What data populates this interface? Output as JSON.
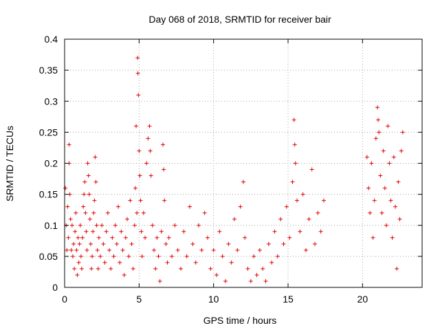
{
  "chart_data": {
    "type": "scatter",
    "title": "Day 068 of 2018, SRMTID for receiver bair",
    "xlabel": "GPS time / hours",
    "ylabel": "SRMTID / TECUs",
    "xlim": [
      0,
      24
    ],
    "ylim": [
      0,
      0.4
    ],
    "xticks": [
      0,
      5,
      10,
      15,
      20
    ],
    "yticks": [
      0,
      0.05,
      0.1,
      0.15,
      0.2,
      0.25,
      0.3,
      0.35,
      0.4
    ],
    "ytick_labels": [
      "0",
      "0.05",
      "0.1",
      "0.15",
      "0.2",
      "0.25",
      "0.3",
      "0.35",
      "0.4"
    ],
    "xtick_labels": [
      "0",
      "5",
      "10",
      "15",
      "20"
    ],
    "grid": true,
    "marker": "+",
    "color": "#e00000",
    "series": [
      {
        "name": "SRMTID",
        "points": [
          [
            0.05,
            0.16
          ],
          [
            0.1,
            0.1
          ],
          [
            0.15,
            0.06
          ],
          [
            0.2,
            0.13
          ],
          [
            0.25,
            0.08
          ],
          [
            0.3,
            0.23
          ],
          [
            0.3,
            0.2
          ],
          [
            0.35,
            0.15
          ],
          [
            0.4,
            0.11
          ],
          [
            0.45,
            0.06
          ],
          [
            0.5,
            0.1
          ],
          [
            0.55,
            0.05
          ],
          [
            0.6,
            0.07
          ],
          [
            0.65,
            0.03
          ],
          [
            0.7,
            0.09
          ],
          [
            0.75,
            0.12
          ],
          [
            0.8,
            0.06
          ],
          [
            0.85,
            0.02
          ],
          [
            0.9,
            0.08
          ],
          [
            0.95,
            0.04
          ],
          [
            1.0,
            0.07
          ],
          [
            1.05,
            0.1
          ],
          [
            1.1,
            0.05
          ],
          [
            1.15,
            0.03
          ],
          [
            1.2,
            0.08
          ],
          [
            1.25,
            0.13
          ],
          [
            1.3,
            0.15
          ],
          [
            1.35,
            0.17
          ],
          [
            1.4,
            0.12
          ],
          [
            1.45,
            0.09
          ],
          [
            1.5,
            0.06
          ],
          [
            1.55,
            0.2
          ],
          [
            1.6,
            0.18
          ],
          [
            1.65,
            0.15
          ],
          [
            1.7,
            0.11
          ],
          [
            1.75,
            0.07
          ],
          [
            1.8,
            0.03
          ],
          [
            1.85,
            0.05
          ],
          [
            1.9,
            0.09
          ],
          [
            1.95,
            0.12
          ],
          [
            2.0,
            0.14
          ],
          [
            2.05,
            0.21
          ],
          [
            2.1,
            0.17
          ],
          [
            2.15,
            0.1
          ],
          [
            2.2,
            0.06
          ],
          [
            2.25,
            0.03
          ],
          [
            2.3,
            0.08
          ],
          [
            2.4,
            0.05
          ],
          [
            2.5,
            0.1
          ],
          [
            2.6,
            0.07
          ],
          [
            2.7,
            0.04
          ],
          [
            2.8,
            0.09
          ],
          [
            2.9,
            0.12
          ],
          [
            3.0,
            0.06
          ],
          [
            3.1,
            0.03
          ],
          [
            3.2,
            0.08
          ],
          [
            3.3,
            0.05
          ],
          [
            3.4,
            0.1
          ],
          [
            3.5,
            0.07
          ],
          [
            3.6,
            0.13
          ],
          [
            3.7,
            0.04
          ],
          [
            3.8,
            0.09
          ],
          [
            3.9,
            0.06
          ],
          [
            4.0,
            0.02
          ],
          [
            4.1,
            0.08
          ],
          [
            4.2,
            0.11
          ],
          [
            4.3,
            0.05
          ],
          [
            4.4,
            0.14
          ],
          [
            4.5,
            0.07
          ],
          [
            4.6,
            0.03
          ],
          [
            4.7,
            0.1
          ],
          [
            4.75,
            0.16
          ],
          [
            4.8,
            0.26
          ],
          [
            4.85,
            0.12
          ],
          [
            4.9,
            0.37
          ],
          [
            4.92,
            0.345
          ],
          [
            4.95,
            0.31
          ],
          [
            5.0,
            0.22
          ],
          [
            5.05,
            0.18
          ],
          [
            5.1,
            0.14
          ],
          [
            5.15,
            0.09
          ],
          [
            5.2,
            0.05
          ],
          [
            5.3,
            0.12
          ],
          [
            5.4,
            0.08
          ],
          [
            5.5,
            0.2
          ],
          [
            5.6,
            0.24
          ],
          [
            5.7,
            0.26
          ],
          [
            5.75,
            0.22
          ],
          [
            5.8,
            0.18
          ],
          [
            5.9,
            0.1
          ],
          [
            6.0,
            0.06
          ],
          [
            6.1,
            0.03
          ],
          [
            6.2,
            0.08
          ],
          [
            6.3,
            0.05
          ],
          [
            6.4,
            0.01
          ],
          [
            6.5,
            0.09
          ],
          [
            6.6,
            0.23
          ],
          [
            6.65,
            0.19
          ],
          [
            6.7,
            0.14
          ],
          [
            6.8,
            0.07
          ],
          [
            6.9,
            0.04
          ],
          [
            7.0,
            0.08
          ],
          [
            7.2,
            0.05
          ],
          [
            7.4,
            0.1
          ],
          [
            7.6,
            0.06
          ],
          [
            7.8,
            0.03
          ],
          [
            8.0,
            0.09
          ],
          [
            8.2,
            0.05
          ],
          [
            8.4,
            0.13
          ],
          [
            8.6,
            0.07
          ],
          [
            8.8,
            0.04
          ],
          [
            9.0,
            0.1
          ],
          [
            9.2,
            0.06
          ],
          [
            9.4,
            0.12
          ],
          [
            9.6,
            0.08
          ],
          [
            9.8,
            0.03
          ],
          [
            10.0,
            0.06
          ],
          [
            10.2,
            0.02
          ],
          [
            10.4,
            0.09
          ],
          [
            10.6,
            0.05
          ],
          [
            10.8,
            0.01
          ],
          [
            11.0,
            0.07
          ],
          [
            11.2,
            0.04
          ],
          [
            11.4,
            0.11
          ],
          [
            11.6,
            0.06
          ],
          [
            11.8,
            0.13
          ],
          [
            12.0,
            0.17
          ],
          [
            12.1,
            0.08
          ],
          [
            12.3,
            0.03
          ],
          [
            12.5,
            0.01
          ],
          [
            12.7,
            0.05
          ],
          [
            12.9,
            0.02
          ],
          [
            13.1,
            0.06
          ],
          [
            13.3,
            0.03
          ],
          [
            13.5,
            0.01
          ],
          [
            13.7,
            0.07
          ],
          [
            13.9,
            0.04
          ],
          [
            14.1,
            0.09
          ],
          [
            14.3,
            0.05
          ],
          [
            14.5,
            0.11
          ],
          [
            14.7,
            0.07
          ],
          [
            14.9,
            0.13
          ],
          [
            15.1,
            0.08
          ],
          [
            15.3,
            0.17
          ],
          [
            15.4,
            0.27
          ],
          [
            15.45,
            0.23
          ],
          [
            15.5,
            0.2
          ],
          [
            15.6,
            0.14
          ],
          [
            15.8,
            0.09
          ],
          [
            16.0,
            0.15
          ],
          [
            16.2,
            0.06
          ],
          [
            16.4,
            0.11
          ],
          [
            16.6,
            0.19
          ],
          [
            16.8,
            0.07
          ],
          [
            17.0,
            0.12
          ],
          [
            17.2,
            0.09
          ],
          [
            17.4,
            0.14
          ],
          [
            20.3,
            0.21
          ],
          [
            20.4,
            0.16
          ],
          [
            20.5,
            0.12
          ],
          [
            20.6,
            0.2
          ],
          [
            20.7,
            0.08
          ],
          [
            20.8,
            0.14
          ],
          [
            20.9,
            0.24
          ],
          [
            21.0,
            0.29
          ],
          [
            21.05,
            0.27
          ],
          [
            21.1,
            0.25
          ],
          [
            21.2,
            0.18
          ],
          [
            21.3,
            0.12
          ],
          [
            21.4,
            0.22
          ],
          [
            21.5,
            0.16
          ],
          [
            21.6,
            0.1
          ],
          [
            21.7,
            0.26
          ],
          [
            21.8,
            0.2
          ],
          [
            21.9,
            0.14
          ],
          [
            22.0,
            0.08
          ],
          [
            22.1,
            0.21
          ],
          [
            22.2,
            0.13
          ],
          [
            22.3,
            0.03
          ],
          [
            22.4,
            0.17
          ],
          [
            22.5,
            0.11
          ],
          [
            22.6,
            0.22
          ],
          [
            22.7,
            0.25
          ]
        ]
      }
    ]
  }
}
